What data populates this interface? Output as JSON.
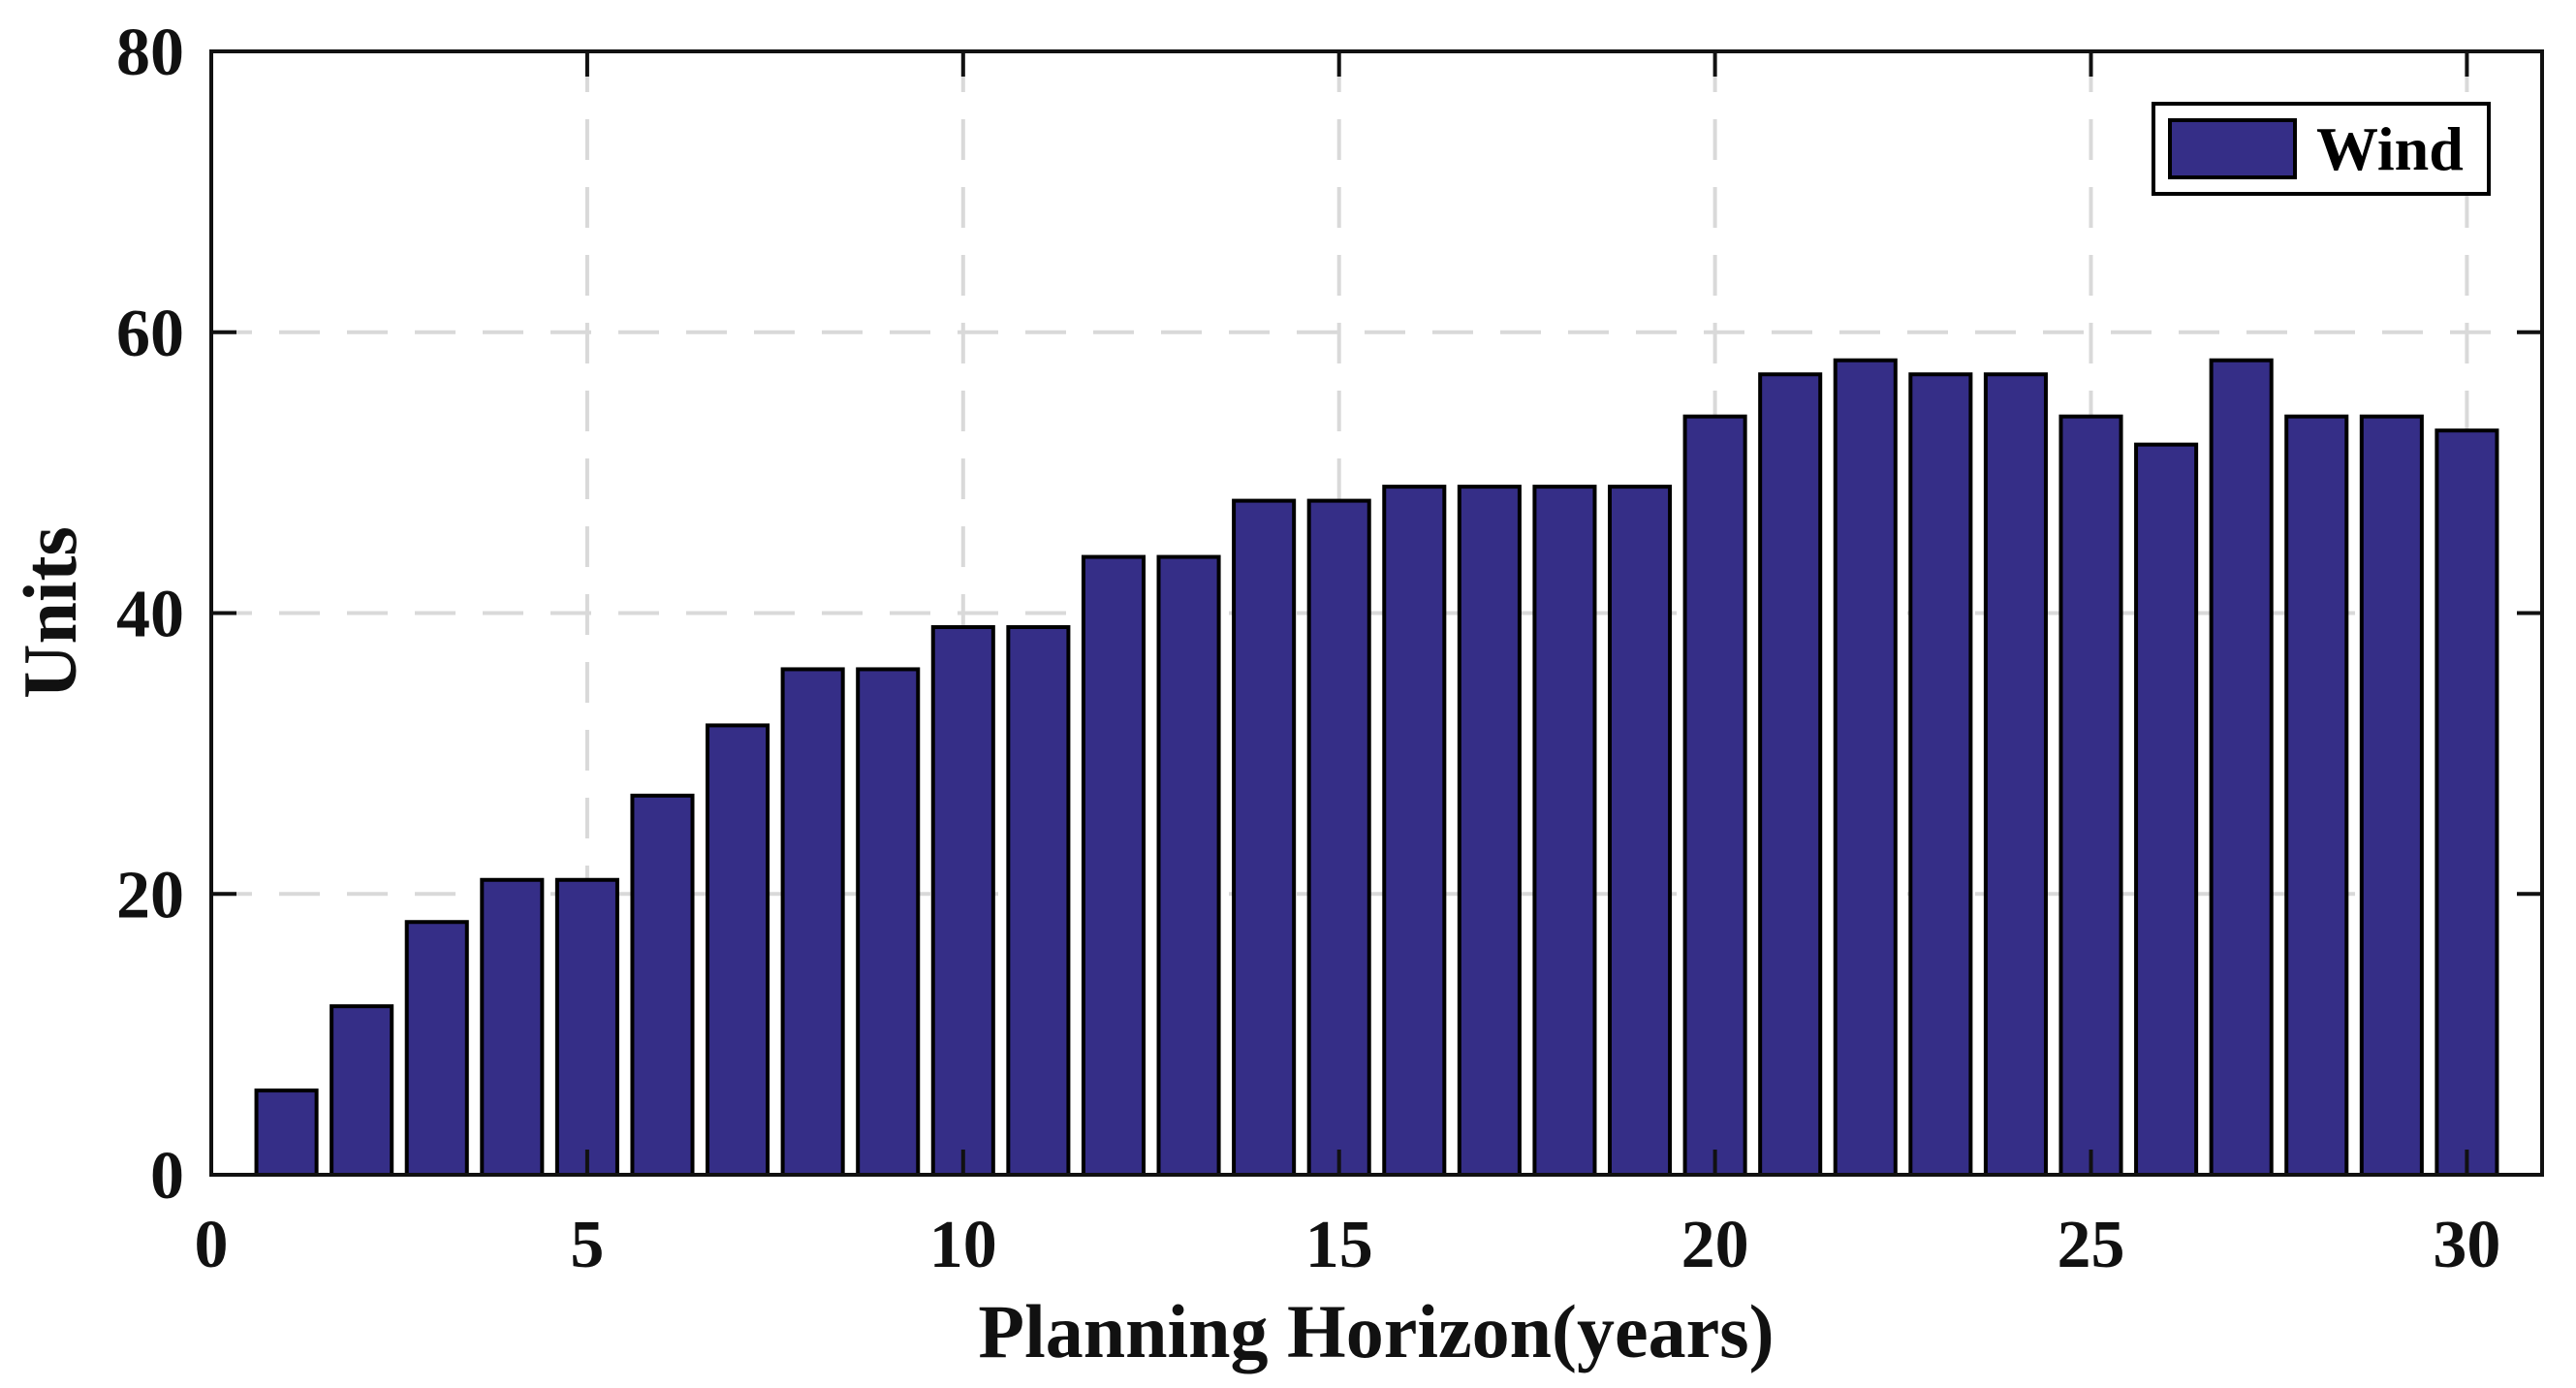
{
  "figure": {
    "background": "#FFFFFF"
  },
  "chart_data": {
    "type": "bar",
    "title": "",
    "xlabel": "Planning Horizon(years)",
    "ylabel": "Units",
    "x": [
      1,
      2,
      3,
      4,
      5,
      6,
      7,
      8,
      9,
      10,
      11,
      12,
      13,
      14,
      15,
      16,
      17,
      18,
      19,
      20,
      21,
      22,
      23,
      24,
      25,
      26,
      27,
      28,
      29,
      30
    ],
    "series": [
      {
        "name": "Wind",
        "color": "#352E87",
        "edge_color": "#000000",
        "values": [
          6,
          12,
          18,
          21,
          21,
          27,
          32,
          36,
          36,
          39,
          39,
          44,
          44,
          48,
          48,
          49,
          49,
          49,
          49,
          54,
          57,
          58,
          57,
          57,
          54,
          52,
          58,
          54,
          54,
          53
        ]
      }
    ],
    "xlim": [
      0,
      31
    ],
    "ylim": [
      0,
      80
    ],
    "xticks": [
      0,
      5,
      10,
      15,
      20,
      25,
      30
    ],
    "yticks": [
      0,
      20,
      40,
      60,
      80
    ],
    "bar_width": 0.8,
    "grid": {
      "style": "dashed",
      "color": "#D9D9D9",
      "vertical": true,
      "horizontal": true
    },
    "legend": {
      "position": "top-right",
      "entries": [
        "Wind"
      ]
    },
    "axis_color": "#111111"
  }
}
